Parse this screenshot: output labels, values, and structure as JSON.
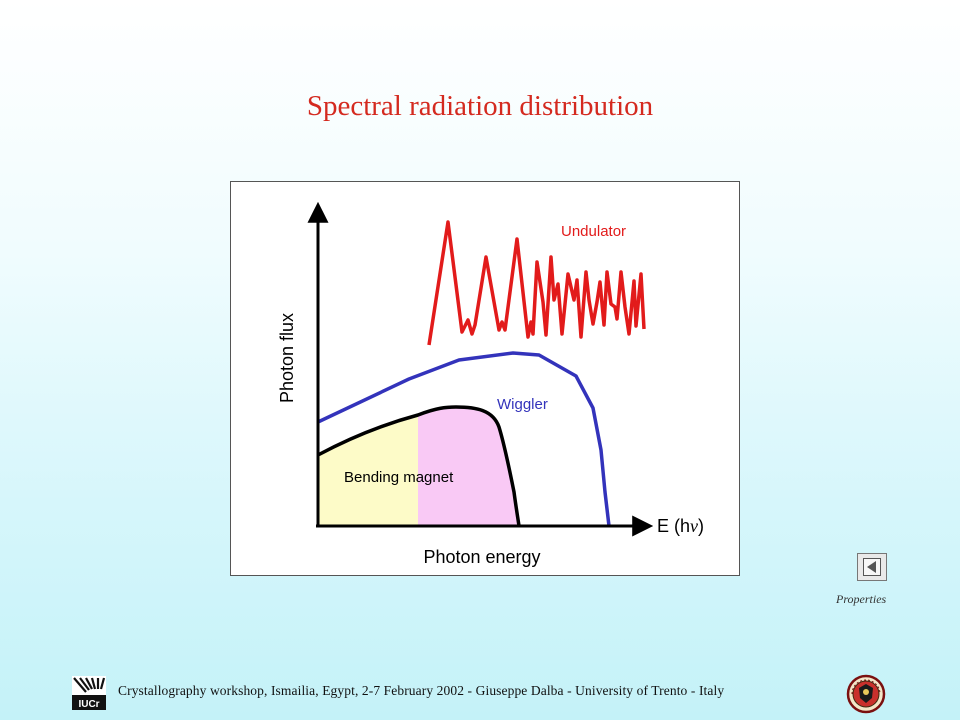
{
  "slide": {
    "title": "Spectral radiation distribution"
  },
  "diagram": {
    "y_axis_label": "Photon flux",
    "x_axis_label": "Photon energy",
    "x_axis_end_label_prefix": "E (h",
    "x_axis_end_label_symbol": "ν",
    "x_axis_end_label_suffix": ")",
    "curves": {
      "undulator": {
        "label": "Undulator",
        "color": "#e21b1b"
      },
      "wiggler": {
        "label": "Wiggler",
        "color": "#3333bb"
      },
      "bending_magnet": {
        "label": "Bending magnet",
        "color": "#000000"
      }
    },
    "fill_colors": {
      "low_energy": "#fdfbc8",
      "high_energy": "#f9c9f5"
    }
  },
  "navigation": {
    "back_button_icon": "triangle-left-icon",
    "properties_label": "Properties"
  },
  "footer": {
    "text": "Crystallography workshop, Ismailia, Egypt, 2-7 February  2002 - Giuseppe Dalba -  University of Trento - Italy",
    "left_logo_text": "IUCr"
  }
}
